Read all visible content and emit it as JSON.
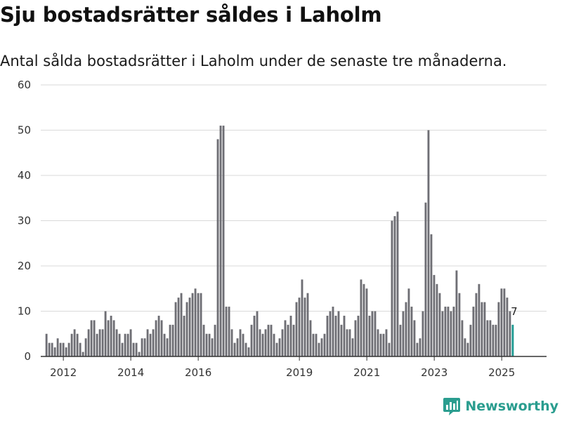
{
  "title": "Sju bostadsrätter såldes i Laholm",
  "subtitle": "Antal sålda bostadsrätter i Laholm under de senaste tre månaderna.",
  "brand": "Newsworthy",
  "colors": {
    "bar": "#6e6e74",
    "highlight": "#1f9a92",
    "grid": "#d9d9d9",
    "axis": "#333333",
    "brand": "#2a9d8f"
  },
  "chart_data": {
    "type": "bar",
    "title": "Sju bostadsrätter såldes i Laholm",
    "xlabel": "",
    "ylabel": "",
    "ylim": [
      0,
      60
    ],
    "yticks": [
      0,
      10,
      20,
      30,
      40,
      50,
      60
    ],
    "x_range": [
      2011.33,
      2026.33
    ],
    "xticks": [
      {
        "value": 2012.0,
        "label": "2012"
      },
      {
        "value": 2014.0,
        "label": "2014"
      },
      {
        "value": 2016.0,
        "label": "2016"
      },
      {
        "value": 2019.0,
        "label": "2019"
      },
      {
        "value": 2021.0,
        "label": "2021"
      },
      {
        "value": 2023.0,
        "label": "2023"
      },
      {
        "value": 2025.0,
        "label": "2025"
      }
    ],
    "x_start": 2011.5,
    "x_step": 0.0833,
    "values": [
      5,
      3,
      3,
      2,
      4,
      3,
      3,
      2,
      3,
      5,
      6,
      5,
      3,
      1,
      4,
      6,
      8,
      8,
      5,
      6,
      6,
      10,
      8,
      9,
      8,
      6,
      5,
      3,
      5,
      5,
      6,
      3,
      3,
      1,
      4,
      4,
      6,
      5,
      6,
      8,
      9,
      8,
      5,
      4,
      7,
      7,
      12,
      13,
      14,
      9,
      12,
      13,
      14,
      15,
      14,
      14,
      7,
      5,
      5,
      4,
      7,
      48,
      51,
      51,
      11,
      11,
      6,
      3,
      4,
      6,
      5,
      3,
      2,
      7,
      9,
      10,
      6,
      5,
      6,
      7,
      7,
      5,
      3,
      4,
      6,
      8,
      7,
      9,
      7,
      12,
      13,
      17,
      13,
      14,
      8,
      5,
      5,
      3,
      4,
      5,
      9,
      10,
      11,
      9,
      10,
      7,
      9,
      6,
      6,
      4,
      8,
      9,
      17,
      16,
      15,
      9,
      10,
      10,
      6,
      5,
      5,
      6,
      3,
      30,
      31,
      32,
      7,
      10,
      12,
      15,
      11,
      8,
      3,
      4,
      10,
      34,
      50,
      27,
      18,
      16,
      14,
      10,
      11,
      11,
      10,
      11,
      19,
      14,
      8,
      4,
      3,
      7,
      11,
      14,
      16,
      12,
      12,
      8,
      8,
      7,
      7,
      12,
      15,
      15,
      13,
      10,
      7
    ],
    "highlight_last": true,
    "last_value_label": "7"
  }
}
